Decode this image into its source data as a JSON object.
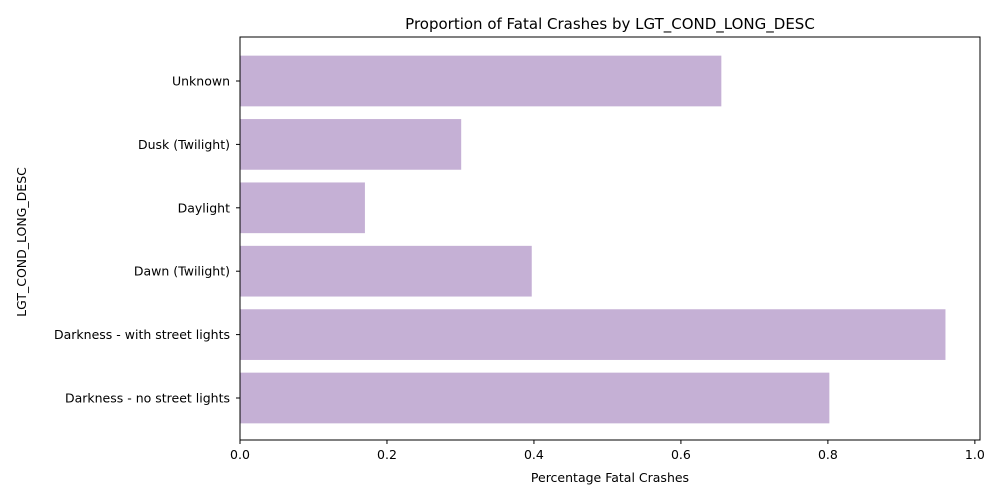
{
  "chart_data": {
    "type": "bar",
    "orientation": "horizontal",
    "title": "Proportion of Fatal Crashes by LGT_COND_LONG_DESC",
    "xlabel": "Percentage Fatal Crashes",
    "ylabel": "LGT_COND_LONG_DESC",
    "categories": [
      "Darkness - no street lights",
      "Darkness - with street lights",
      "Dawn (Twilight)",
      "Daylight",
      "Dusk (Twilight)",
      "Unknown"
    ],
    "values": [
      0.802,
      0.96,
      0.397,
      0.17,
      0.301,
      0.655
    ],
    "xlim": [
      0,
      1.007
    ],
    "xticks": [
      0.0,
      0.2,
      0.4,
      0.6,
      0.8,
      1.0
    ],
    "xtick_labels": [
      "0.0",
      "0.2",
      "0.4",
      "0.6",
      "0.8",
      "1.0"
    ],
    "bar_color": "#c5b0d5",
    "grid": false,
    "legend": "none"
  }
}
